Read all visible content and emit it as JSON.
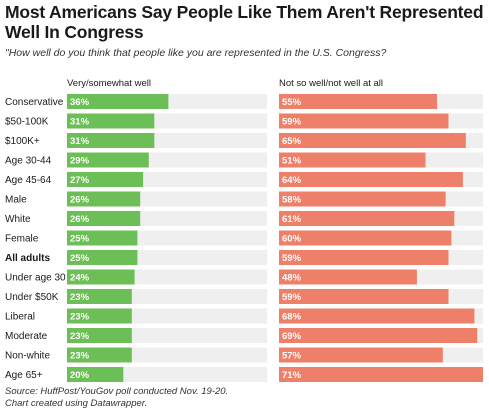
{
  "title": "Most Americans Say People Like Them Aren't Represented Well In Congress",
  "subtitle": "\"How well do you think that people like you are represented in the U.S. Congress?",
  "notes": {
    "source": "Source: HuffPost/YouGov poll conducted Nov. 19-20.",
    "credit": "Chart created using Datawrapper."
  },
  "colors": {
    "well": "#6cbf56",
    "not_well": "#ee8069",
    "track": "#efefef"
  },
  "chart_data": {
    "type": "bar",
    "categories": [
      "Conservative",
      "$50-100K",
      "$100K+",
      "Age 30-44",
      "Age 45-64",
      "Male",
      "White",
      "Female",
      "All adults",
      "Under age 30",
      "Under $50K",
      "Liberal",
      "Moderate",
      "Non-white",
      "Age 65+"
    ],
    "bold_categories": [
      "All adults"
    ],
    "series": [
      {
        "name": "Very/somewhat well",
        "values": [
          36,
          31,
          31,
          29,
          27,
          26,
          26,
          25,
          25,
          24,
          23,
          23,
          23,
          23,
          20
        ],
        "labels": [
          "36%",
          "31%",
          "31%",
          "29%",
          "27%",
          "26%",
          "26%",
          "25%",
          "25%",
          "24%",
          "23%",
          "23%",
          "23%",
          "23%",
          "20%"
        ],
        "max": 71
      },
      {
        "name": "Not so well/not well at all",
        "values": [
          55,
          59,
          65,
          51,
          64,
          58,
          61,
          60,
          59,
          48,
          59,
          68,
          69,
          57,
          71
        ],
        "labels": [
          "55%",
          "59%",
          "65%",
          "51%",
          "64%",
          "58%",
          "61%",
          "60%",
          "59%",
          "48%",
          "59%",
          "68%",
          "69%",
          "57%",
          "71%"
        ],
        "max": 71
      }
    ]
  }
}
